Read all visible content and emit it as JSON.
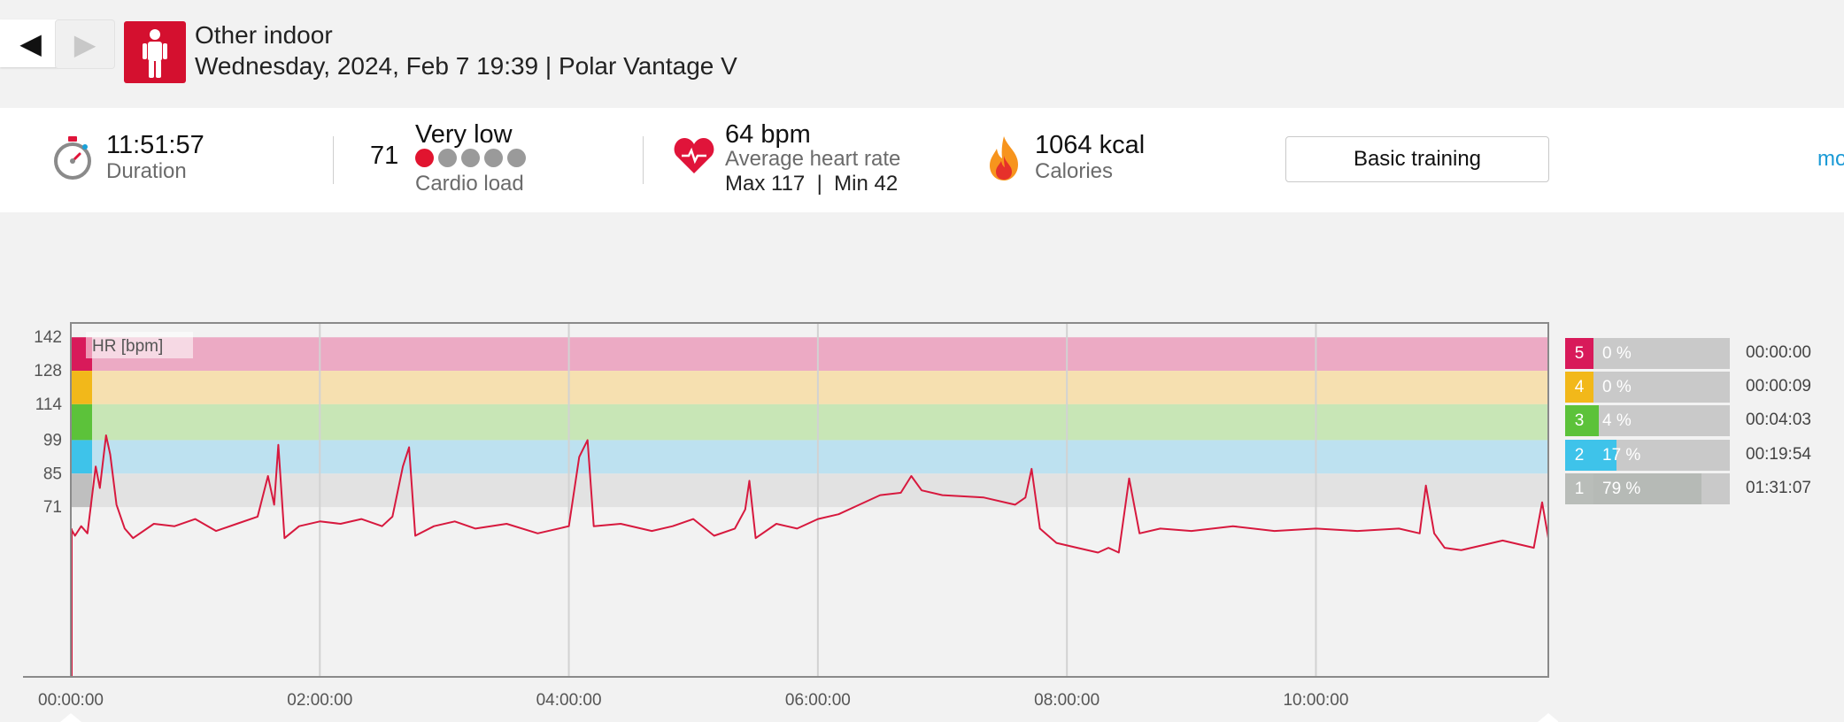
{
  "nav": {
    "prev_icon": "◀",
    "next_icon": "▶"
  },
  "session": {
    "sport": "Other indoor",
    "datetime_device": "Wednesday, 2024, Feb 7 19:39 | Polar Vantage V",
    "sport_icon": "person-standing-icon",
    "sport_color": "#d4102f"
  },
  "summary": {
    "duration": {
      "value": "11:51:57",
      "label": "Duration"
    },
    "cardio_load": {
      "value": "71",
      "level": "Very low",
      "label": "Cardio load",
      "dots_filled": 1,
      "dots_total": 5
    },
    "heart_rate": {
      "value": "64 bpm",
      "label": "Average heart rate",
      "max_min": "Max 117  |  Min 42"
    },
    "calories": {
      "value": "1064 kcal",
      "label": "Calories"
    },
    "training_button": "Basic training",
    "more_link": "mo"
  },
  "chart_data": {
    "type": "line",
    "series_label": "HR [bpm]",
    "x_ticks": [
      "00:00:00",
      "02:00:00",
      "04:00:00",
      "06:00:00",
      "08:00:00",
      "10:00:00"
    ],
    "y_ticks": [
      "142",
      "128",
      "114",
      "99",
      "85",
      "71"
    ],
    "x_range_minutes": [
      0,
      712
    ],
    "ylim": [
      0,
      148
    ],
    "zones": [
      {
        "zone": 5,
        "from": 128,
        "to": 142,
        "color": "#ecaac4",
        "marker": "#d81a5a"
      },
      {
        "zone": 4,
        "from": 114,
        "to": 128,
        "color": "#f6e0b0",
        "marker": "#f2b81a"
      },
      {
        "zone": 3,
        "from": 99,
        "to": 114,
        "color": "#c8e6b6",
        "marker": "#5cc23a"
      },
      {
        "zone": 2,
        "from": 85,
        "to": 99,
        "color": "#bde1f0",
        "marker": "#3ec3ea"
      },
      {
        "zone": 1,
        "from": 71,
        "to": 85,
        "color": "#e2e2e2",
        "marker": "#bfbfbf"
      }
    ],
    "line_color": "#d7193e",
    "hr_points": [
      [
        0,
        62
      ],
      [
        2,
        59
      ],
      [
        5,
        63
      ],
      [
        8,
        60
      ],
      [
        12,
        88
      ],
      [
        14,
        79
      ],
      [
        17,
        101
      ],
      [
        19,
        93
      ],
      [
        22,
        72
      ],
      [
        26,
        62
      ],
      [
        30,
        58
      ],
      [
        40,
        64
      ],
      [
        50,
        63
      ],
      [
        60,
        66
      ],
      [
        70,
        61
      ],
      [
        80,
        64
      ],
      [
        90,
        67
      ],
      [
        95,
        84
      ],
      [
        98,
        72
      ],
      [
        100,
        97
      ],
      [
        103,
        58
      ],
      [
        110,
        63
      ],
      [
        120,
        65
      ],
      [
        130,
        64
      ],
      [
        140,
        66
      ],
      [
        150,
        63
      ],
      [
        155,
        67
      ],
      [
        160,
        88
      ],
      [
        163,
        96
      ],
      [
        166,
        59
      ],
      [
        175,
        63
      ],
      [
        185,
        65
      ],
      [
        195,
        62
      ],
      [
        210,
        64
      ],
      [
        225,
        60
      ],
      [
        240,
        63
      ],
      [
        245,
        92
      ],
      [
        249,
        99
      ],
      [
        252,
        63
      ],
      [
        265,
        64
      ],
      [
        280,
        61
      ],
      [
        290,
        63
      ],
      [
        300,
        66
      ],
      [
        310,
        59
      ],
      [
        320,
        62
      ],
      [
        325,
        70
      ],
      [
        327,
        82
      ],
      [
        330,
        58
      ],
      [
        340,
        64
      ],
      [
        350,
        62
      ],
      [
        360,
        66
      ],
      [
        370,
        68
      ],
      [
        380,
        72
      ],
      [
        390,
        76
      ],
      [
        400,
        77
      ],
      [
        405,
        84
      ],
      [
        410,
        78
      ],
      [
        420,
        76
      ],
      [
        440,
        75
      ],
      [
        455,
        72
      ],
      [
        460,
        75
      ],
      [
        463,
        87
      ],
      [
        467,
        62
      ],
      [
        475,
        56
      ],
      [
        485,
        54
      ],
      [
        495,
        52
      ],
      [
        500,
        54
      ],
      [
        505,
        52
      ],
      [
        510,
        83
      ],
      [
        515,
        60
      ],
      [
        525,
        62
      ],
      [
        540,
        61
      ],
      [
        560,
        63
      ],
      [
        580,
        61
      ],
      [
        600,
        62
      ],
      [
        620,
        61
      ],
      [
        640,
        62
      ],
      [
        650,
        60
      ],
      [
        653,
        80
      ],
      [
        657,
        60
      ],
      [
        662,
        54
      ],
      [
        670,
        53
      ],
      [
        680,
        55
      ],
      [
        690,
        57
      ],
      [
        700,
        55
      ],
      [
        705,
        54
      ],
      [
        709,
        73
      ],
      [
        712,
        58
      ]
    ]
  },
  "zone_summary": [
    {
      "zone": "5",
      "percent": "0 %",
      "fraction": 0.0,
      "time": "00:00:00",
      "color": "#d81a5a"
    },
    {
      "zone": "4",
      "percent": "0 %",
      "fraction": 0.0,
      "time": "00:00:09",
      "color": "#f2b81a"
    },
    {
      "zone": "3",
      "percent": "4 %",
      "fraction": 0.04,
      "time": "00:04:03",
      "color": "#5cc23a"
    },
    {
      "zone": "2",
      "percent": "17 %",
      "fraction": 0.17,
      "time": "00:19:54",
      "color": "#3ec3ea"
    },
    {
      "zone": "1",
      "percent": "79 %",
      "fraction": 0.79,
      "time": "01:31:07",
      "color": "#b9bdb9"
    }
  ]
}
